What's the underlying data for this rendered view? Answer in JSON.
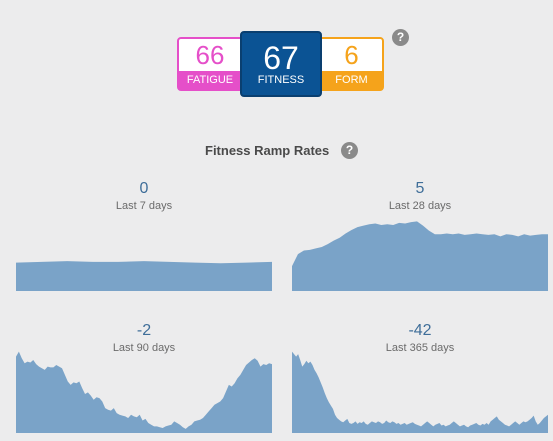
{
  "metrics": {
    "fatigue": {
      "value": "66",
      "label": "FATIGUE",
      "color": "#e54fc9"
    },
    "fitness": {
      "value": "67",
      "label": "FITNESS",
      "color": "#0b5394"
    },
    "form": {
      "value": "6",
      "label": "FORM",
      "color": "#f5a31b"
    },
    "help_icon": "question-mark-icon"
  },
  "ramp_rates": {
    "title": "Fitness Ramp Rates",
    "help_icon": "question-mark-icon",
    "fill_color": "#7aa3c8",
    "cards": [
      {
        "value": "0",
        "period": "Last 7 days",
        "series": [
          40,
          41,
          42,
          41,
          41,
          42,
          41,
          40,
          39,
          40,
          41
        ]
      },
      {
        "value": "5",
        "period": "Last 28 days",
        "series": [
          35,
          52,
          57,
          58,
          60,
          62,
          66,
          71,
          75,
          81,
          86,
          90,
          92,
          94,
          95,
          93,
          94,
          93,
          96,
          95,
          97,
          98,
          92,
          85,
          80,
          80,
          81,
          80,
          81,
          79,
          80,
          81,
          80,
          79,
          80,
          77,
          80,
          79,
          77,
          80,
          78,
          79,
          80,
          80
        ]
      },
      {
        "value": "-2",
        "period": "Last 90 days",
        "series": [
          92,
          98,
          90,
          84,
          86,
          85,
          88,
          83,
          80,
          78,
          76,
          80,
          79,
          79,
          82,
          80,
          78,
          70,
          62,
          58,
          61,
          60,
          62,
          54,
          47,
          49,
          45,
          40,
          43,
          42,
          38,
          30,
          28,
          27,
          30,
          24,
          22,
          21,
          20,
          18,
          22,
          20,
          19,
          22,
          15,
          17,
          12,
          10,
          8,
          8,
          7,
          6,
          8,
          9,
          10,
          14,
          12,
          10,
          7,
          5,
          8,
          10,
          14,
          15,
          16,
          18,
          22,
          26,
          30,
          34,
          36,
          38,
          42,
          50,
          58,
          56,
          60,
          66,
          70,
          76,
          82,
          85,
          88,
          90,
          87,
          80,
          83,
          82,
          84,
          83
        ]
      },
      {
        "value": "-42",
        "period": "Last 365 days",
        "series": [
          98,
          95,
          92,
          95,
          88,
          80,
          83,
          87,
          84,
          86,
          82,
          76,
          72,
          67,
          61,
          55,
          48,
          42,
          37,
          33,
          29,
          22,
          18,
          16,
          14,
          13,
          15,
          17,
          12,
          11,
          12,
          14,
          11,
          13,
          12,
          14,
          11,
          10,
          12,
          14,
          13,
          12,
          14,
          13,
          11,
          12,
          15,
          13,
          12,
          14,
          13,
          11,
          12,
          10,
          11,
          12,
          10,
          11,
          12,
          13,
          11,
          10,
          9,
          8,
          10,
          12,
          14,
          12,
          10,
          8,
          10,
          11,
          12,
          9,
          10,
          8,
          9,
          10,
          12,
          14,
          12,
          10,
          8,
          9,
          10,
          8,
          7,
          9,
          10,
          11,
          12,
          10,
          9,
          11,
          10,
          12,
          10,
          14,
          16,
          18,
          20,
          16,
          14,
          12,
          10,
          9,
          8,
          10,
          12,
          14,
          12,
          10,
          12,
          14,
          13,
          14,
          16,
          18,
          21,
          14,
          10,
          12,
          15,
          18,
          20,
          22
        ]
      }
    ]
  }
}
